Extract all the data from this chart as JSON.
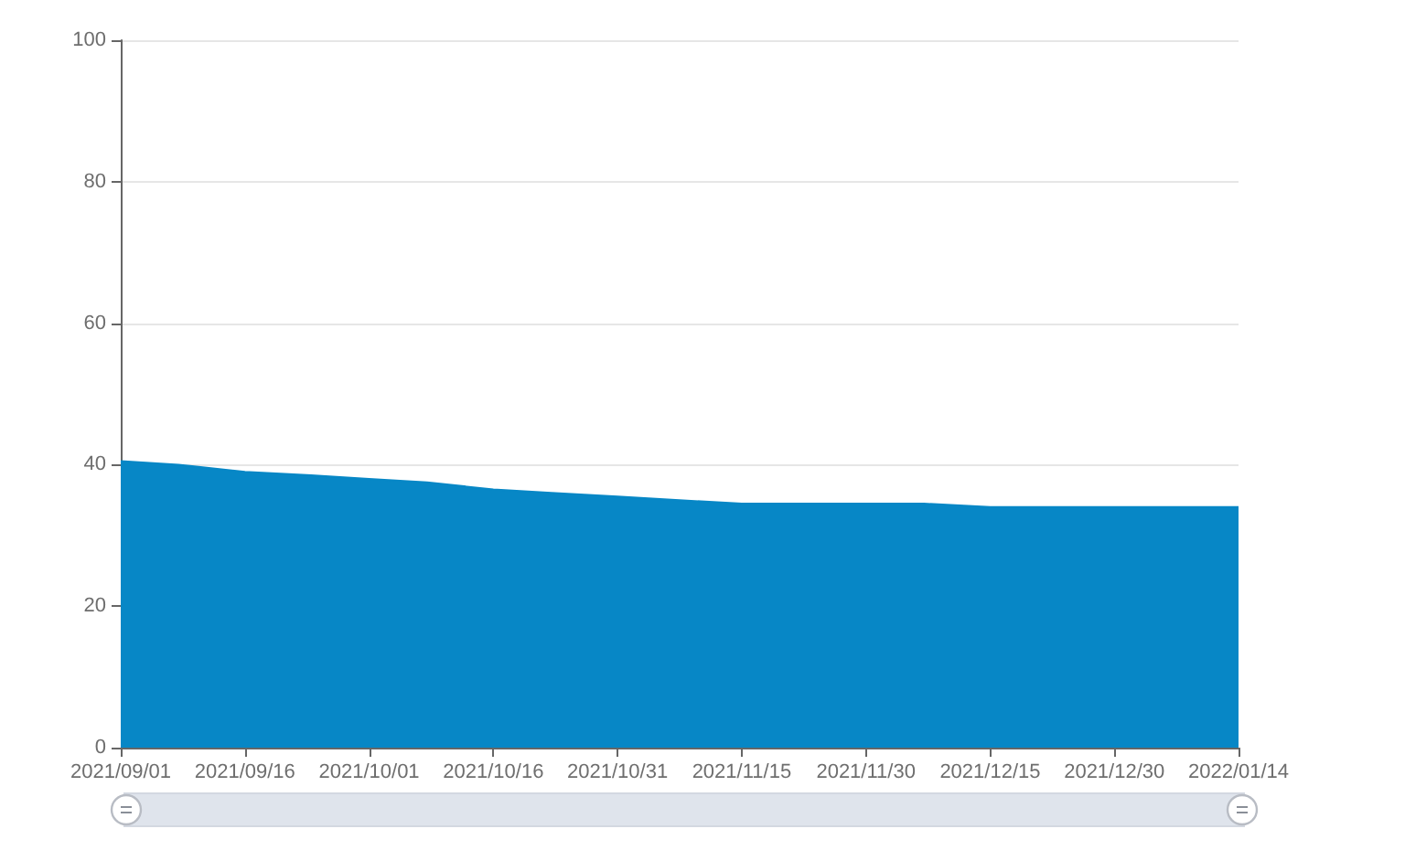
{
  "chart_data": {
    "type": "area",
    "x": [
      "2021-09-01",
      "2021-09-08",
      "2021-09-16",
      "2021-09-24",
      "2021-10-01",
      "2021-10-08",
      "2021-10-16",
      "2021-10-23",
      "2021-10-31",
      "2021-11-07",
      "2021-11-15",
      "2021-11-22",
      "2021-11-30",
      "2021-12-07",
      "2021-12-15",
      "2021-12-22",
      "2021-12-30",
      "2022-01-07",
      "2022-01-14"
    ],
    "values": [
      40.5,
      40,
      39,
      38.5,
      38,
      37.5,
      36.5,
      36,
      35.5,
      35,
      34.5,
      34.5,
      34.5,
      34.5,
      34,
      34,
      34,
      34,
      34
    ],
    "color": "#0787c6",
    "xlim": [
      "2021-09-01",
      "2022-01-14"
    ],
    "xticks": [
      {
        "value": "2021-09-01",
        "label": "2021/09/01"
      },
      {
        "value": "2021-09-16",
        "label": "2021/09/16"
      },
      {
        "value": "2021-10-01",
        "label": "2021/10/01"
      },
      {
        "value": "2021-10-16",
        "label": "2021/10/16"
      },
      {
        "value": "2021-10-31",
        "label": "2021/10/31"
      },
      {
        "value": "2021-11-15",
        "label": "2021/11/15"
      },
      {
        "value": "2021-11-30",
        "label": "2021/11/30"
      },
      {
        "value": "2021-12-15",
        "label": "2021/12/15"
      },
      {
        "value": "2021-12-30",
        "label": "2021/12/30"
      },
      {
        "value": "2022-01-14",
        "label": "2022/01/14"
      }
    ],
    "ylim": [
      0,
      100
    ],
    "yticks": [
      0,
      20,
      40,
      60,
      80,
      100
    ],
    "grid": "y",
    "marker": "none"
  }
}
